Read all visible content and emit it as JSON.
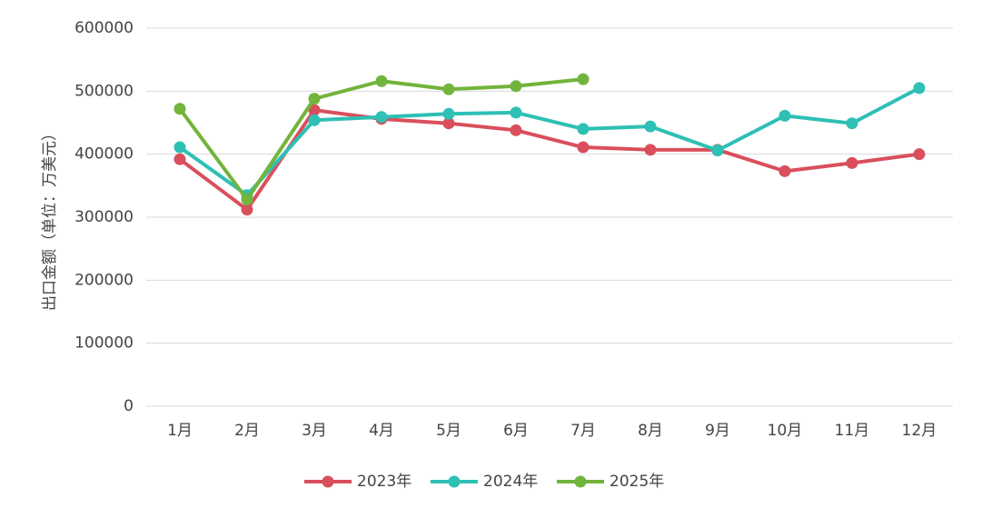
{
  "chart_data": {
    "type": "line",
    "y_label": "出口金额（单位：万美元）",
    "categories": [
      "1月",
      "2月",
      "3月",
      "4月",
      "5月",
      "6月",
      "7月",
      "8月",
      "9月",
      "10月",
      "11月",
      "12月"
    ],
    "series": [
      {
        "name": "2023年",
        "color": "#d94f5c",
        "values": [
          392000,
          312000,
          470000,
          456000,
          449000,
          438000,
          411000,
          407000,
          407000,
          373000,
          386000,
          400000
        ]
      },
      {
        "name": "2024年",
        "color": "#2ebfb5",
        "values": [
          411000,
          335000,
          454000,
          459000,
          464000,
          466000,
          440000,
          444000,
          406000,
          461000,
          449000,
          505000
        ]
      },
      {
        "name": "2025年",
        "color": "#72b43c",
        "values": [
          472000,
          328000,
          488000,
          516000,
          503000,
          508000,
          519000,
          null,
          null,
          null,
          null,
          null
        ]
      }
    ],
    "ylim": [
      0,
      600000
    ],
    "yticks": [
      0,
      100000,
      200000,
      300000,
      400000,
      500000,
      600000
    ],
    "grid": true,
    "legend": "bottom"
  }
}
